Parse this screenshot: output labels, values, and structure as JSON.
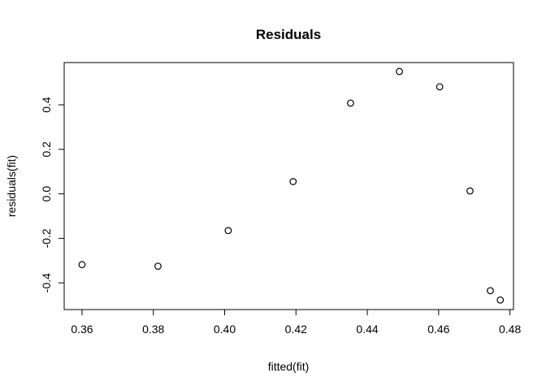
{
  "chart_data": {
    "type": "scatter",
    "title": "Residuals",
    "xlabel": "fitted(fit)",
    "ylabel": "residuals(fit)",
    "xlim": [
      0.355,
      0.481
    ],
    "ylim": [
      -0.52,
      0.59
    ],
    "x_ticks": [
      0.36,
      0.38,
      0.4,
      0.42,
      0.44,
      0.46,
      0.48
    ],
    "x_tick_labels": [
      "0.36",
      "0.38",
      "0.40",
      "0.42",
      "0.44",
      "0.46",
      "0.48"
    ],
    "y_ticks": [
      -0.4,
      -0.2,
      0.0,
      0.2,
      0.4
    ],
    "y_tick_labels": [
      "-0.4",
      "-0.2",
      "0.0",
      "0.2",
      "0.4"
    ],
    "grid": false,
    "point_style": "open-circle",
    "x": [
      0.36,
      0.3813,
      0.401,
      0.4192,
      0.4353,
      0.449,
      0.4603,
      0.4688,
      0.4745,
      0.4773
    ],
    "y": [
      -0.318,
      -0.325,
      -0.165,
      0.055,
      0.408,
      0.55,
      0.481,
      0.013,
      -0.435,
      -0.477
    ]
  }
}
